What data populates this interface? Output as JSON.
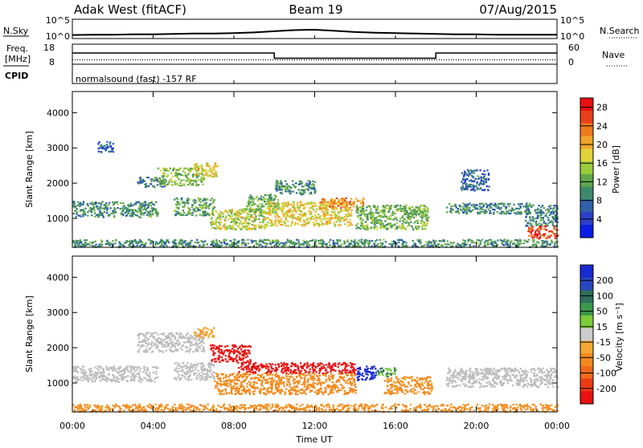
{
  "header": {
    "station": "Adak West (fitACF)",
    "beam": "Beam 19",
    "date": "07/Aug/2015"
  },
  "panel_labels": {
    "nsky": "N.Sky",
    "nsearch": "N.Search",
    "freq_line1": "Freq.",
    "freq_line2": "[MHz]",
    "nave": "Nave",
    "cpid": "CPID"
  },
  "cpid_text": "normalsound (fast) -157 RF",
  "colors": {
    "power": [
      "#0a1ee6",
      "#2a40c8",
      "#2f5fa8",
      "#3d8a6a",
      "#5fa84a",
      "#9acc3c",
      "#e0d23a",
      "#f2a52a",
      "#f07a1e",
      "#e8401a",
      "#e81010"
    ],
    "velocity": [
      "#1a2ad2",
      "#2a46be",
      "#2d6e5a",
      "#3a9a4a",
      "#7ccc3a",
      "#cccccc",
      "#f4a832",
      "#f28a1e",
      "#f06a1a",
      "#ec3c14",
      "#e81010"
    ],
    "ground_scatter": "#bdbdbd"
  },
  "chart_data": [
    {
      "type": "line",
      "panel": "nsky-nsearch",
      "yticks_left": [
        "10^5",
        "10^0"
      ],
      "yticks_right": [
        "10^5",
        "10^0"
      ],
      "ylim": [
        0,
        5
      ],
      "series": [
        {
          "name": "N.Sky",
          "x": [
            0,
            1,
            2,
            3,
            4,
            5,
            6,
            7,
            8,
            9,
            10,
            11,
            12,
            13,
            14,
            15,
            16,
            17,
            18,
            19,
            20,
            21,
            22,
            23,
            24
          ],
          "values": [
            0.9,
            1.0,
            1.0,
            1.1,
            1.1,
            1.2,
            1.3,
            1.3,
            1.4,
            1.6,
            1.9,
            2.2,
            2.3,
            2.0,
            1.7,
            1.5,
            1.4,
            1.3,
            1.2,
            1.1,
            1.1,
            1.0,
            1.0,
            1.0,
            1.0
          ]
        }
      ]
    },
    {
      "type": "line",
      "panel": "freq-nave",
      "yticks_left": [
        "18",
        "8"
      ],
      "yticks_right": [
        "60",
        "0"
      ],
      "left_ylim": [
        8,
        18
      ],
      "right_ylim": [
        0,
        60
      ],
      "series": [
        {
          "name": "Freq.",
          "axis": "left",
          "x": [
            0,
            10.0,
            10.0,
            18.0,
            18.0,
            24
          ],
          "values": [
            13.7,
            13.7,
            10.6,
            10.6,
            13.7,
            13.7
          ]
        },
        {
          "name": "Nave",
          "axis": "right",
          "x": [
            0,
            24
          ],
          "values": [
            10,
            10
          ]
        }
      ]
    },
    {
      "type": "heatmap",
      "panel": "power",
      "ylabel": "Slant Range [km]",
      "colorbar_label": "Power [dB]",
      "colorbar_ticks": [
        4,
        8,
        12,
        16,
        20,
        24,
        28
      ],
      "colorbar_range": [
        0,
        30
      ],
      "xlim": [
        0,
        24
      ],
      "ylim": [
        180,
        4600
      ],
      "yticks": [
        1000,
        2000,
        3000,
        4000
      ],
      "regions": [
        {
          "x0": 0.0,
          "x1": 4.2,
          "y0": 1050,
          "y1": 1500,
          "value": 10
        },
        {
          "x0": 1.2,
          "x1": 2.0,
          "y0": 2900,
          "y1": 3200,
          "value": 6
        },
        {
          "x0": 3.2,
          "x1": 4.6,
          "y0": 1900,
          "y1": 2200,
          "value": 8
        },
        {
          "x0": 4.2,
          "x1": 6.5,
          "y0": 1950,
          "y1": 2450,
          "value": 14
        },
        {
          "x0": 6.0,
          "x1": 7.2,
          "y0": 2200,
          "y1": 2600,
          "value": 18
        },
        {
          "x0": 5.0,
          "x1": 7.0,
          "y0": 1100,
          "y1": 1600,
          "value": 11
        },
        {
          "x0": 6.8,
          "x1": 9.6,
          "y0": 700,
          "y1": 1300,
          "value": 16
        },
        {
          "x0": 8.6,
          "x1": 10.2,
          "y0": 1200,
          "y1": 1700,
          "value": 12
        },
        {
          "x0": 9.6,
          "x1": 13.8,
          "y0": 800,
          "y1": 1500,
          "value": 18
        },
        {
          "x0": 10.0,
          "x1": 12.0,
          "y0": 1700,
          "y1": 2100,
          "value": 10
        },
        {
          "x0": 12.2,
          "x1": 14.4,
          "y0": 1300,
          "y1": 1600,
          "value": 22
        },
        {
          "x0": 14.0,
          "x1": 17.6,
          "y0": 700,
          "y1": 1400,
          "value": 13
        },
        {
          "x0": 16.4,
          "x1": 17.6,
          "y0": 1100,
          "y1": 1300,
          "value": 12
        },
        {
          "x0": 19.2,
          "x1": 20.6,
          "y0": 1800,
          "y1": 2400,
          "value": 7
        },
        {
          "x0": 18.5,
          "x1": 22.6,
          "y0": 1150,
          "y1": 1450,
          "value": 9
        },
        {
          "x0": 22.4,
          "x1": 24.0,
          "y0": 800,
          "y1": 1400,
          "value": 9
        },
        {
          "x0": 22.5,
          "x1": 24.0,
          "y0": 450,
          "y1": 800,
          "value": 27
        },
        {
          "x0": 0.0,
          "x1": 24.0,
          "y0": 200,
          "y1": 420,
          "value": 10
        }
      ]
    },
    {
      "type": "heatmap",
      "panel": "velocity",
      "ylabel": "Slant Range [km]",
      "colorbar_label": "Velocity [m s⁻¹]",
      "colorbar_ticks": [
        200,
        100,
        50,
        15,
        -15,
        -50,
        -100,
        -200
      ],
      "colorbar_range": [
        -250,
        250
      ],
      "xlim": [
        0,
        24
      ],
      "ylim": [
        180,
        4600
      ],
      "yticks": [
        1000,
        2000,
        3000,
        4000
      ],
      "regions": [
        {
          "x0": 0.0,
          "x1": 4.2,
          "y0": 1050,
          "y1": 1500,
          "value": "ground"
        },
        {
          "x0": 3.2,
          "x1": 6.5,
          "y0": 1900,
          "y1": 2450,
          "value": "ground"
        },
        {
          "x0": 5.0,
          "x1": 7.0,
          "y0": 1100,
          "y1": 1600,
          "value": "ground"
        },
        {
          "x0": 6.0,
          "x1": 7.0,
          "y0": 2300,
          "y1": 2600,
          "value": -40
        },
        {
          "x0": 6.8,
          "x1": 8.8,
          "y0": 1600,
          "y1": 2100,
          "value": -220
        },
        {
          "x0": 7.0,
          "x1": 14.0,
          "y0": 700,
          "y1": 1300,
          "value": -70
        },
        {
          "x0": 8.2,
          "x1": 14.0,
          "y0": 1300,
          "y1": 1600,
          "value": -210
        },
        {
          "x0": 14.0,
          "x1": 15.0,
          "y0": 1100,
          "y1": 1500,
          "value": 220
        },
        {
          "x0": 15.0,
          "x1": 16.0,
          "y0": 1200,
          "y1": 1450,
          "value": 30
        },
        {
          "x0": 15.4,
          "x1": 17.8,
          "y0": 700,
          "y1": 1200,
          "value": -60
        },
        {
          "x0": 18.5,
          "x1": 24.0,
          "y0": 900,
          "y1": 1450,
          "value": "ground"
        },
        {
          "x0": 0.0,
          "x1": 24.0,
          "y0": 200,
          "y1": 420,
          "value": -60
        }
      ]
    }
  ],
  "x_axis": {
    "label": "Time UT",
    "ticks": [
      "00:00",
      "04:00",
      "08:00",
      "12:00",
      "16:00",
      "20:00",
      "00:00"
    ]
  }
}
